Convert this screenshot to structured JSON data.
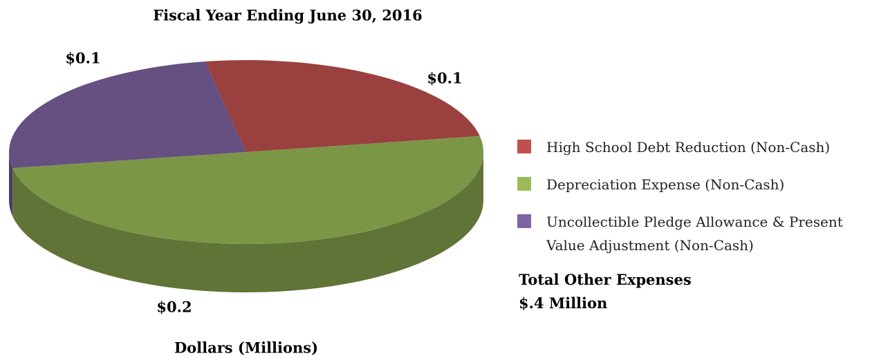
{
  "chart_data": {
    "type": "pie",
    "title": "Fiscal Year Ending June 30, 2016",
    "x_label": "Dollars (Millions)",
    "categories": [
      "High School Debt Reduction (Non-Cash)",
      "Depreciation Expense (Non-Cash)",
      "Uncollectible Pledge Allowance & Present Value Adjustment (Non-Cash)"
    ],
    "values": [
      0.1,
      0.2,
      0.1
    ],
    "value_labels": [
      "$0.1",
      "$0.2",
      "$0.1"
    ],
    "colors": [
      "#c0504d",
      "#9bbb59",
      "#8064a2"
    ],
    "annotations": [
      "Total Other Expenses",
      "$.4 Million"
    ]
  }
}
